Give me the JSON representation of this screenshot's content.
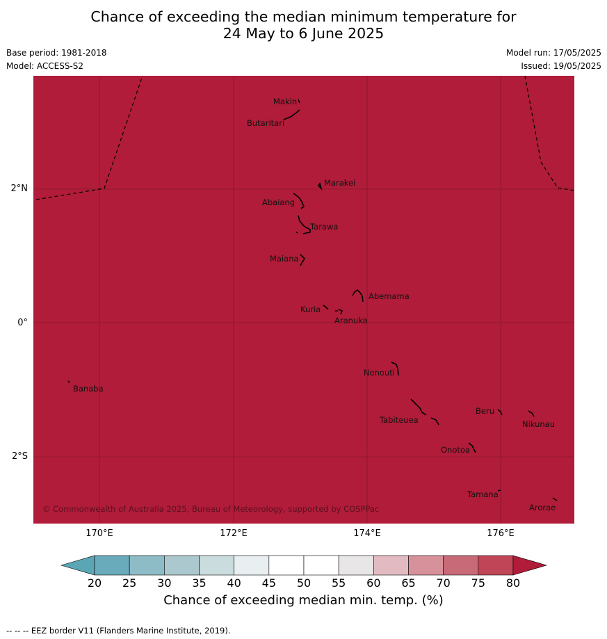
{
  "title": {
    "line1": "Chance of exceeding the median minimum temperature for",
    "line2": "24 May to 6 June 2025"
  },
  "meta": {
    "base_period": "Base period: 1981-2018",
    "model": "Model: ACCESS-S2",
    "model_run": "Model run: 17/05/2025",
    "issued": "Issued: 19/05/2025"
  },
  "map": {
    "fill_color": "#b01c39",
    "copyright": "© Commonwealth of Australia 2025, Bureau of Meteorology, supported by COSPPac",
    "lat_labels": [
      "2°N",
      "0°",
      "2°S"
    ],
    "lon_labels": [
      "170°E",
      "172°E",
      "174°E",
      "176°E"
    ],
    "islands": [
      {
        "name": "Makin"
      },
      {
        "name": "Butaritari"
      },
      {
        "name": "Marakei"
      },
      {
        "name": "Abaiang"
      },
      {
        "name": "Tarawa"
      },
      {
        "name": "Maiana"
      },
      {
        "name": "Abemama"
      },
      {
        "name": "Kuria"
      },
      {
        "name": "Aranuka"
      },
      {
        "name": "Banaba"
      },
      {
        "name": "Nonouti"
      },
      {
        "name": "Beru"
      },
      {
        "name": "Nikunau"
      },
      {
        "name": "Tabiteuea"
      },
      {
        "name": "Onotoa"
      },
      {
        "name": "Tamana"
      },
      {
        "name": "Arorae"
      }
    ]
  },
  "colorbar": {
    "title": "Chance of exceeding median min. temp. (%)",
    "ticks": [
      "20",
      "25",
      "30",
      "35",
      "40",
      "45",
      "50",
      "55",
      "60",
      "65",
      "70",
      "75",
      "80"
    ],
    "colors": {
      "under": "#5aa6b5",
      "bins": [
        "#6aabbb",
        "#8dbbc6",
        "#abc8ce",
        "#cbdcdf",
        "#e9eff1",
        "#ffffff",
        "#ffffff",
        "#e9e6e7",
        "#e2bbc2",
        "#d6919b",
        "#c96a79",
        "#bf4557"
      ],
      "over": "#b01c39"
    }
  },
  "footer": "--  --  -- EEZ border V11 (Flanders Marine Institute, 2019)."
}
